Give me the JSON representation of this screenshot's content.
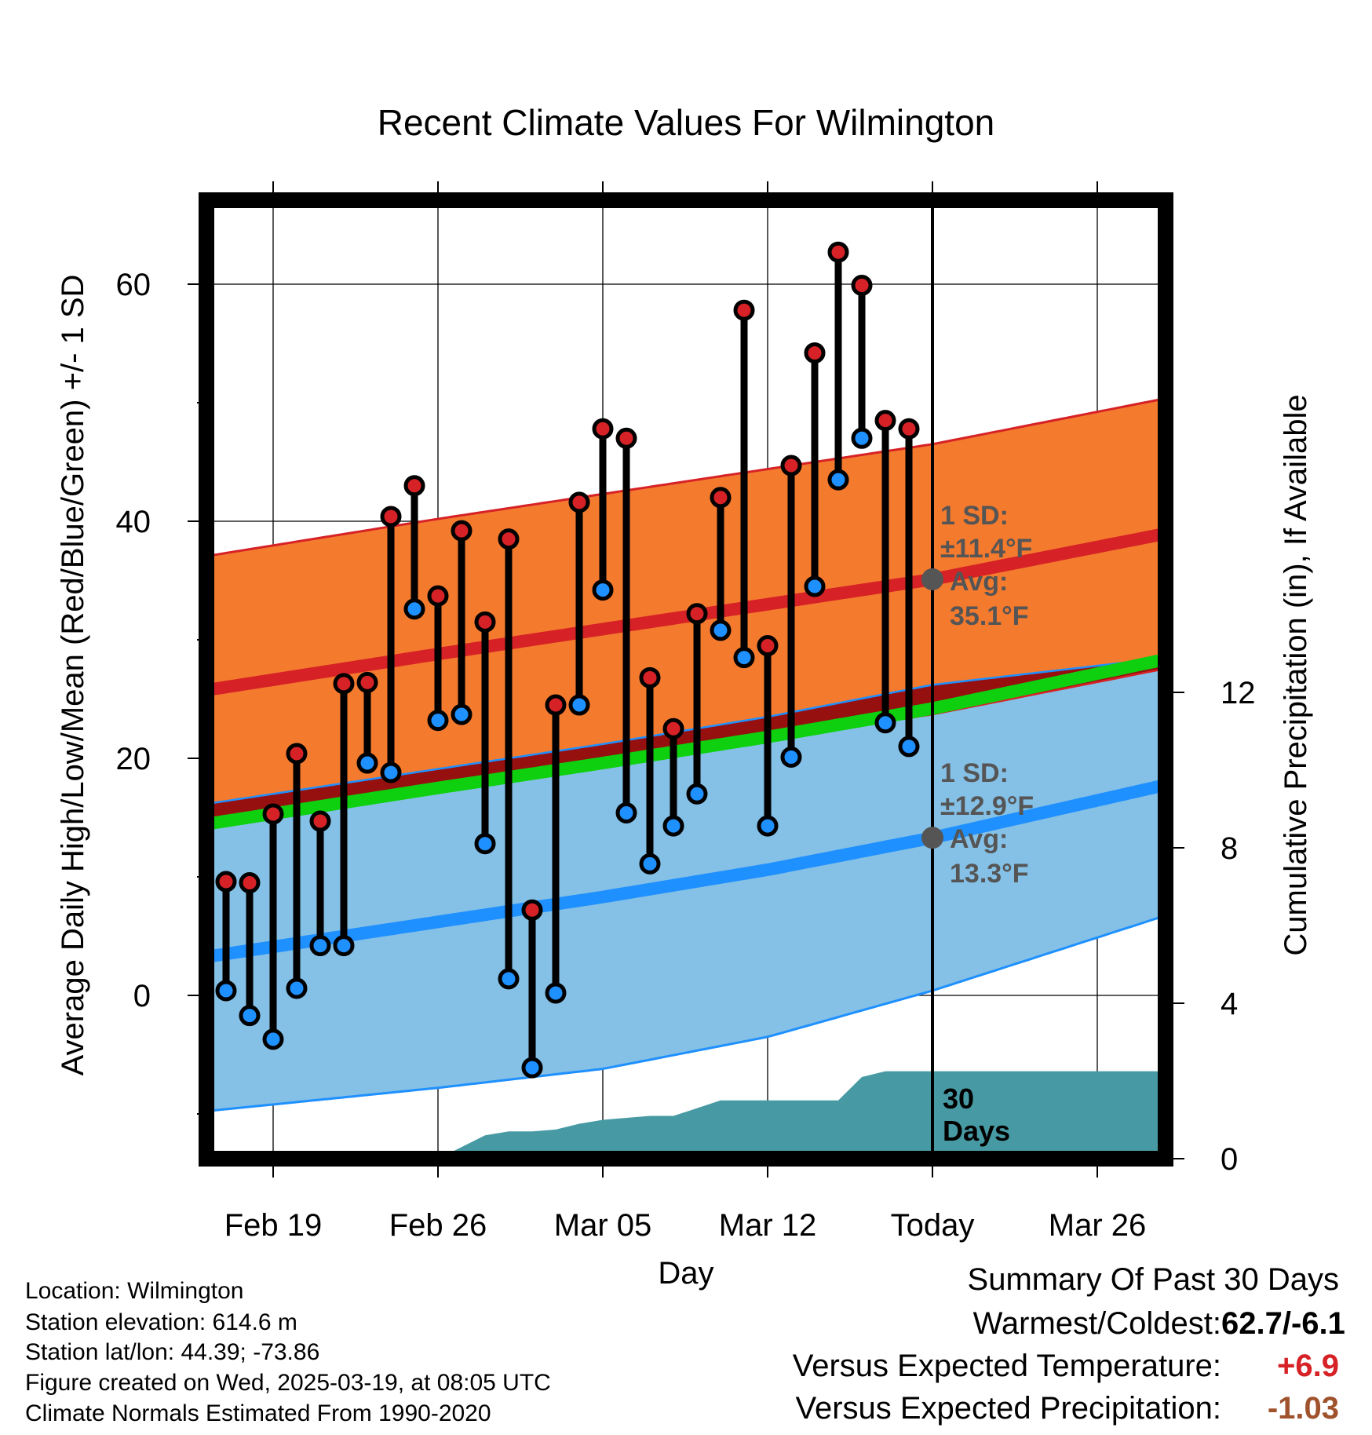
{
  "chart_data": {
    "type": "line",
    "title": "Recent Climate Values For Wilmington",
    "xlabel": "Day",
    "ylabel": "Average Daily High/Low/Mean (Red/Blue/Green) +/- 1 SD",
    "y2label": "Cumulative Precipitation (in), If Available",
    "xlim": [
      -3.5,
      38.5
    ],
    "ylim": [
      -13.5,
      68
    ],
    "y2lim": [
      0,
      25
    ],
    "x_ticks": [
      {
        "x": 0,
        "label": "Feb 19"
      },
      {
        "x": 7,
        "label": "Feb 26"
      },
      {
        "x": 14,
        "label": "Mar 05"
      },
      {
        "x": 21,
        "label": "Mar 12"
      },
      {
        "x": 28,
        "label": "Today"
      },
      {
        "x": 35,
        "label": "Mar 26"
      }
    ],
    "y_ticks": [
      0,
      20,
      40,
      60
    ],
    "y_minor_ticks": [
      -10,
      10,
      30,
      50
    ],
    "y2_ticks": [
      0,
      4,
      8,
      12
    ],
    "grid": true,
    "today_x": 28,
    "normals": {
      "x_knots": [
        -3,
        7,
        14,
        21,
        28,
        38
      ],
      "high_mean": [
        25.7,
        28.8,
        30.9,
        33.0,
        35.1,
        39.0
      ],
      "high_upper": [
        37.0,
        40.2,
        42.3,
        44.4,
        46.5,
        50.4
      ],
      "high_lower": [
        14.4,
        17.4,
        19.5,
        21.6,
        23.7,
        27.6
      ],
      "low_mean": [
        3.2,
        6.2,
        8.3,
        10.6,
        13.3,
        17.8
      ],
      "low_upper": [
        16.1,
        19.1,
        21.2,
        23.5,
        26.2,
        28.5
      ],
      "low_lower": [
        -9.8,
        -7.8,
        -6.2,
        -3.5,
        0.4,
        6.8
      ],
      "avg_mean": [
        14.4,
        17.5,
        19.6,
        21.8,
        24.2,
        28.4
      ]
    },
    "series": [
      {
        "name": "High",
        "x": [
          -2,
          -1,
          0,
          1,
          2,
          3,
          4,
          5,
          6,
          7,
          8,
          9,
          10,
          11,
          12,
          13,
          14,
          15,
          16,
          17,
          18,
          19,
          20,
          21,
          22,
          23,
          24,
          25,
          26,
          27
        ],
        "values": [
          9.6,
          9.5,
          15.3,
          20.4,
          14.7,
          26.3,
          26.4,
          40.4,
          43.0,
          33.7,
          39.2,
          31.5,
          38.5,
          7.2,
          24.5,
          41.6,
          47.8,
          47.0,
          26.8,
          22.5,
          32.2,
          42.0,
          57.8,
          29.5,
          44.7,
          54.2,
          62.7,
          59.9,
          48.5,
          47.8
        ]
      },
      {
        "name": "Low",
        "x": [
          -2,
          -1,
          0,
          1,
          2,
          3,
          4,
          5,
          6,
          7,
          8,
          9,
          10,
          11,
          12,
          13,
          14,
          15,
          16,
          17,
          18,
          19,
          20,
          21,
          22,
          23,
          24,
          25,
          26,
          27
        ],
        "values": [
          0.4,
          -1.7,
          -3.7,
          0.6,
          4.2,
          4.2,
          19.6,
          18.8,
          32.6,
          23.2,
          23.7,
          12.8,
          1.4,
          -6.1,
          0.2,
          24.5,
          34.2,
          15.4,
          11.1,
          14.3,
          17.0,
          30.8,
          28.5,
          14.3,
          20.1,
          34.5,
          43.5,
          47.0,
          23.0,
          21.0
        ]
      }
    ],
    "precipitation": {
      "x": [
        -3,
        7,
        8,
        9,
        10,
        11,
        12,
        13,
        14,
        15,
        16,
        17,
        18,
        19,
        20,
        21,
        22,
        23,
        24,
        25,
        26,
        27,
        28,
        38
      ],
      "values": [
        0,
        0,
        0.3,
        0.6,
        0.7,
        0.7,
        0.75,
        0.9,
        1.0,
        1.05,
        1.1,
        1.1,
        1.3,
        1.5,
        1.5,
        1.5,
        1.5,
        1.5,
        1.5,
        2.1,
        2.25,
        2.25,
        2.25,
        2.25
      ]
    },
    "annotations": {
      "high_sd": "1 SD:",
      "high_sd_val": "±11.4°F",
      "high_avg": "Avg:",
      "high_avg_val": "35.1°F",
      "low_sd": "1 SD:",
      "low_sd_val": "±12.9°F",
      "low_avg": "Avg:",
      "low_avg_val": "13.3°F",
      "days_num": "30",
      "days_word": "Days"
    },
    "colors": {
      "high_band": "#f47a2e",
      "high_line": "#d62226",
      "low_band": "#85c0e6",
      "low_line": "#1e90ff",
      "overlap": "#961010",
      "mean_line": "#0ed00e",
      "precip": "#479aa3",
      "high_marker": "#d62226",
      "low_marker": "#1e90ff",
      "annotation_text": "#555555"
    }
  },
  "info": {
    "location": "Location: Wilmington",
    "elevation": "Station elevation: 614.6 m",
    "latlon": "Station lat/lon: 44.39; -73.86",
    "created": "Figure created on Wed, 2025-03-19, at 08:05 UTC",
    "normals": "Climate Normals Estimated From 1990-2020"
  },
  "summary": {
    "title": "Summary Of Past 30 Days",
    "warm_cold_label": "Warmest/Coldest:",
    "warm_cold_value": "62.7/-6.1",
    "temp_label": "Versus Expected Temperature:",
    "temp_value": "+6.9",
    "temp_color": "#d62226",
    "precip_label": "Versus Expected Precipitation:",
    "precip_value": "-1.03",
    "precip_color": "#a0522d"
  }
}
